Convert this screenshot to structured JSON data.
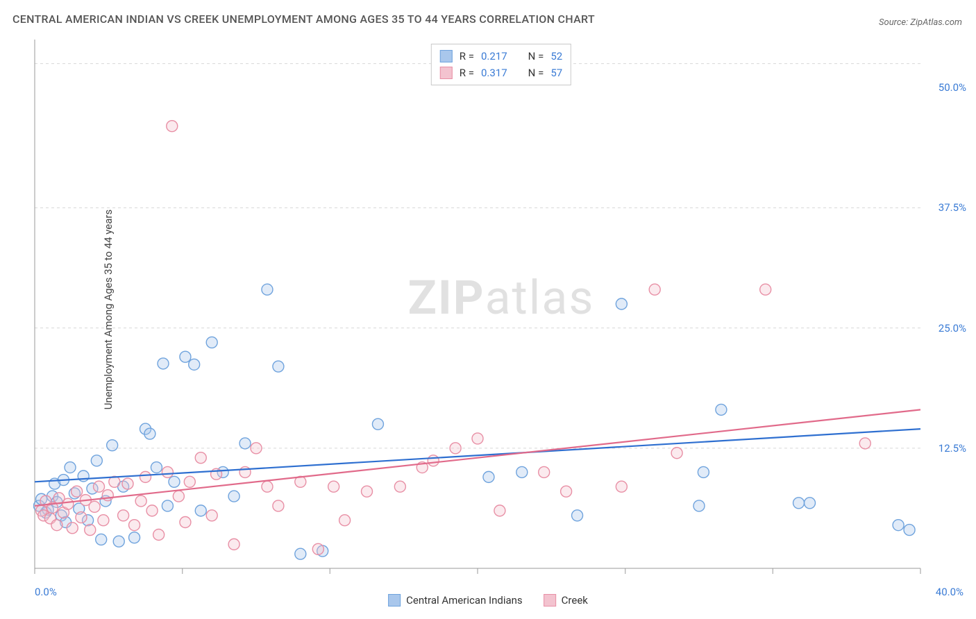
{
  "title": "CENTRAL AMERICAN INDIAN VS CREEK UNEMPLOYMENT AMONG AGES 35 TO 44 YEARS CORRELATION CHART",
  "source": "Source: ZipAtlas.com",
  "y_axis_label": "Unemployment Among Ages 35 to 44 years",
  "watermark_bold": "ZIP",
  "watermark_light": "atlas",
  "x_tick_left": "0.0%",
  "x_tick_right": "40.0%",
  "chart": {
    "type": "scatter",
    "xlim": [
      0,
      40
    ],
    "ylim": [
      0,
      55
    ],
    "x_ticks": [
      0,
      6.67,
      13.33,
      20,
      26.67,
      33.33,
      40
    ],
    "y_ticks_labeled": [
      {
        "v": 12.5,
        "label": "12.5%"
      },
      {
        "v": 25.0,
        "label": "25.0%"
      },
      {
        "v": 37.5,
        "label": "37.5%"
      },
      {
        "v": 50.0,
        "label": "50.0%"
      }
    ],
    "y_gridlines": [
      12.5,
      25.0,
      37.5,
      52.5
    ],
    "grid_color": "#d8d8d8",
    "grid_dash": "4,4",
    "axis_color": "#9a9a9a",
    "background_color": "#ffffff",
    "marker_radius": 8,
    "marker_stroke_width": 1.4,
    "marker_fill_opacity": 0.35,
    "line_width": 2.2,
    "series": [
      {
        "name": "Central American Indians",
        "color_fill": "#a9c7ec",
        "color_stroke": "#6fa3dd",
        "line_color": "#2e6fd0",
        "R": "0.217",
        "N": "52",
        "trend": {
          "x1": 0,
          "y1": 9.0,
          "x2": 40,
          "y2": 14.5
        },
        "points": [
          [
            0.2,
            6.5
          ],
          [
            0.3,
            7.2
          ],
          [
            0.5,
            5.8
          ],
          [
            0.6,
            6.1
          ],
          [
            0.8,
            7.5
          ],
          [
            0.9,
            8.8
          ],
          [
            1.0,
            6.9
          ],
          [
            1.2,
            5.5
          ],
          [
            1.3,
            9.2
          ],
          [
            1.4,
            4.8
          ],
          [
            1.6,
            10.5
          ],
          [
            1.8,
            7.8
          ],
          [
            2.0,
            6.2
          ],
          [
            2.2,
            9.6
          ],
          [
            2.4,
            5.0
          ],
          [
            2.6,
            8.3
          ],
          [
            2.8,
            11.2
          ],
          [
            3.0,
            3.0
          ],
          [
            3.2,
            7.0
          ],
          [
            3.5,
            12.8
          ],
          [
            3.8,
            2.8
          ],
          [
            4.0,
            8.5
          ],
          [
            4.5,
            3.2
          ],
          [
            5.0,
            14.5
          ],
          [
            5.2,
            14.0
          ],
          [
            5.5,
            10.5
          ],
          [
            5.8,
            21.3
          ],
          [
            6.0,
            6.5
          ],
          [
            6.3,
            9.0
          ],
          [
            6.8,
            22.0
          ],
          [
            7.2,
            21.2
          ],
          [
            7.5,
            6.0
          ],
          [
            8.0,
            23.5
          ],
          [
            8.5,
            10.0
          ],
          [
            9.0,
            7.5
          ],
          [
            9.5,
            13.0
          ],
          [
            10.5,
            29.0
          ],
          [
            11.0,
            21.0
          ],
          [
            12.0,
            1.5
          ],
          [
            13.0,
            1.8
          ],
          [
            15.5,
            15.0
          ],
          [
            20.5,
            9.5
          ],
          [
            22.0,
            10.0
          ],
          [
            24.5,
            5.5
          ],
          [
            26.5,
            27.5
          ],
          [
            30.0,
            6.5
          ],
          [
            30.2,
            10.0
          ],
          [
            31.0,
            16.5
          ],
          [
            34.5,
            6.8
          ],
          [
            35.0,
            6.8
          ],
          [
            39.0,
            4.5
          ],
          [
            39.5,
            4.0
          ]
        ]
      },
      {
        "name": "Creek",
        "color_fill": "#f3c3cf",
        "color_stroke": "#e88fa5",
        "line_color": "#e16a8a",
        "R": "0.317",
        "N": "57",
        "trend": {
          "x1": 0,
          "y1": 6.5,
          "x2": 40,
          "y2": 16.5
        },
        "points": [
          [
            0.3,
            6.0
          ],
          [
            0.4,
            5.5
          ],
          [
            0.5,
            7.0
          ],
          [
            0.7,
            5.2
          ],
          [
            0.8,
            6.3
          ],
          [
            1.0,
            4.5
          ],
          [
            1.1,
            7.3
          ],
          [
            1.3,
            5.8
          ],
          [
            1.5,
            6.7
          ],
          [
            1.7,
            4.2
          ],
          [
            1.9,
            8.0
          ],
          [
            2.1,
            5.3
          ],
          [
            2.3,
            7.1
          ],
          [
            2.5,
            4.0
          ],
          [
            2.7,
            6.4
          ],
          [
            2.9,
            8.5
          ],
          [
            3.1,
            5.0
          ],
          [
            3.3,
            7.6
          ],
          [
            3.6,
            9.0
          ],
          [
            4.0,
            5.5
          ],
          [
            4.2,
            8.8
          ],
          [
            4.5,
            4.5
          ],
          [
            4.8,
            7.0
          ],
          [
            5.0,
            9.5
          ],
          [
            5.3,
            6.0
          ],
          [
            5.6,
            3.5
          ],
          [
            6.0,
            10.0
          ],
          [
            6.2,
            46.0
          ],
          [
            6.5,
            7.5
          ],
          [
            6.8,
            4.8
          ],
          [
            7.0,
            9.0
          ],
          [
            7.5,
            11.5
          ],
          [
            8.0,
            5.5
          ],
          [
            8.2,
            9.8
          ],
          [
            9.0,
            2.5
          ],
          [
            9.5,
            10.0
          ],
          [
            10.0,
            12.5
          ],
          [
            10.5,
            8.5
          ],
          [
            11.0,
            6.5
          ],
          [
            12.0,
            9.0
          ],
          [
            12.8,
            2.0
          ],
          [
            13.5,
            8.5
          ],
          [
            14.0,
            5.0
          ],
          [
            15.0,
            8.0
          ],
          [
            16.5,
            8.5
          ],
          [
            17.5,
            10.5
          ],
          [
            18.0,
            11.2
          ],
          [
            19.0,
            12.5
          ],
          [
            20.0,
            13.5
          ],
          [
            21.0,
            6.0
          ],
          [
            23.0,
            10.0
          ],
          [
            24.0,
            8.0
          ],
          [
            26.5,
            8.5
          ],
          [
            28.0,
            29.0
          ],
          [
            29.0,
            12.0
          ],
          [
            33.0,
            29.0
          ],
          [
            37.5,
            13.0
          ]
        ]
      }
    ]
  },
  "stats_legend": {
    "r_label": "R =",
    "n_label": "N ="
  },
  "series_legend": {
    "s1": "Central American Indians",
    "s2": "Creek"
  }
}
